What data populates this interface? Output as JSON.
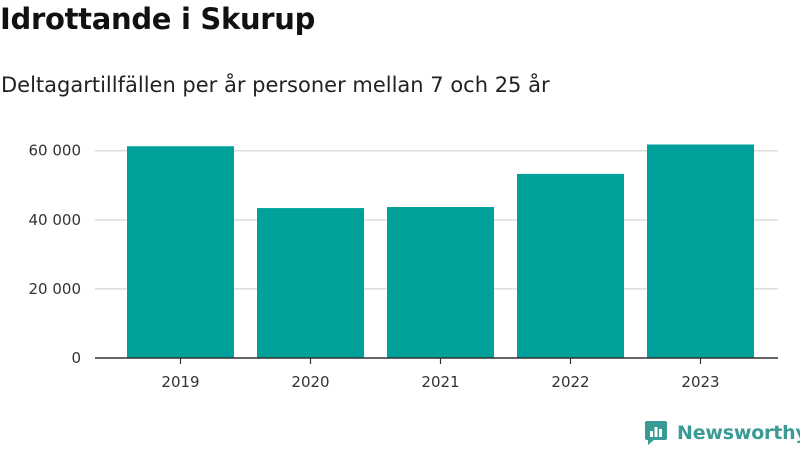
{
  "title": "Idrottande i Skurup",
  "subtitle": "Deltagartillfällen per år personer mellan 7 och 25 år",
  "brand": {
    "name": "Newsworthy",
    "icon": "newsworthy-logo-icon",
    "color": "#3a9b95"
  },
  "colors": {
    "bar": "#00a19a",
    "grid": "#dddddd",
    "axis": "#333333"
  },
  "chart_data": {
    "type": "bar",
    "categories": [
      "2019",
      "2020",
      "2021",
      "2022",
      "2023"
    ],
    "values": [
      61300,
      43400,
      43700,
      53300,
      61800
    ],
    "yticks": [
      0,
      20000,
      40000,
      60000
    ],
    "ytick_labels": [
      "0",
      "20 000",
      "40 000",
      "60 000"
    ],
    "ylim": [
      0,
      66000
    ],
    "grid": true,
    "xlabel": "",
    "ylabel": ""
  }
}
